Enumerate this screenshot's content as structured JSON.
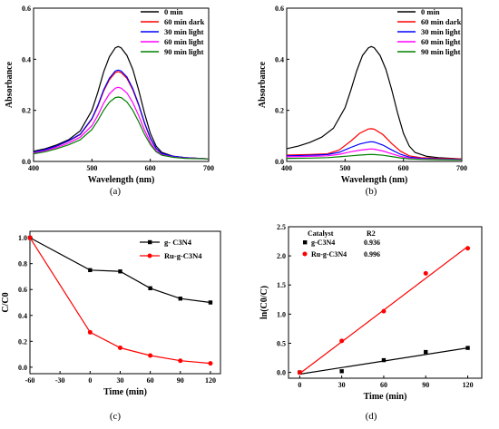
{
  "chart_data": [
    {
      "id": "a",
      "type": "line",
      "caption": "(a)",
      "xlabel": "Wavelength (nm)",
      "ylabel": "Absorbance",
      "xlim": [
        400,
        700
      ],
      "ylim": [
        0,
        0.6
      ],
      "xticks": [
        "400",
        "500",
        "600",
        "700"
      ],
      "yticks": [
        "0.0",
        "0.2",
        "0.4",
        "0.6"
      ],
      "legend_position": "top-right",
      "series": [
        {
          "name": "0 min",
          "color": "#000000",
          "points": [
            [
              400,
              0.04
            ],
            [
              420,
              0.05
            ],
            [
              440,
              0.065
            ],
            [
              460,
              0.085
            ],
            [
              480,
              0.12
            ],
            [
              500,
              0.2
            ],
            [
              510,
              0.27
            ],
            [
              520,
              0.35
            ],
            [
              530,
              0.41
            ],
            [
              540,
              0.445
            ],
            [
              545,
              0.45
            ],
            [
              550,
              0.445
            ],
            [
              560,
              0.415
            ],
            [
              570,
              0.36
            ],
            [
              580,
              0.28
            ],
            [
              590,
              0.19
            ],
            [
              600,
              0.11
            ],
            [
              610,
              0.06
            ],
            [
              620,
              0.035
            ],
            [
              640,
              0.02
            ],
            [
              660,
              0.015
            ],
            [
              700,
              0.01
            ]
          ]
        },
        {
          "name": "60 min dark",
          "color": "#ff0000",
          "points": [
            [
              400,
              0.035
            ],
            [
              420,
              0.045
            ],
            [
              440,
              0.06
            ],
            [
              460,
              0.08
            ],
            [
              480,
              0.105
            ],
            [
              500,
              0.165
            ],
            [
              510,
              0.215
            ],
            [
              520,
              0.275
            ],
            [
              530,
              0.32
            ],
            [
              540,
              0.348
            ],
            [
              545,
              0.352
            ],
            [
              550,
              0.348
            ],
            [
              560,
              0.325
            ],
            [
              570,
              0.28
            ],
            [
              580,
              0.22
            ],
            [
              590,
              0.15
            ],
            [
              600,
              0.09
            ],
            [
              610,
              0.05
            ],
            [
              620,
              0.03
            ],
            [
              640,
              0.02
            ],
            [
              660,
              0.015
            ],
            [
              700,
              0.01
            ]
          ]
        },
        {
          "name": "30 min light",
          "color": "#0000ff",
          "points": [
            [
              400,
              0.036
            ],
            [
              420,
              0.046
            ],
            [
              440,
              0.061
            ],
            [
              460,
              0.081
            ],
            [
              480,
              0.107
            ],
            [
              500,
              0.168
            ],
            [
              510,
              0.219
            ],
            [
              520,
              0.28
            ],
            [
              530,
              0.326
            ],
            [
              540,
              0.354
            ],
            [
              545,
              0.358
            ],
            [
              550,
              0.354
            ],
            [
              560,
              0.331
            ],
            [
              570,
              0.285
            ],
            [
              580,
              0.224
            ],
            [
              590,
              0.153
            ],
            [
              600,
              0.092
            ],
            [
              610,
              0.051
            ],
            [
              620,
              0.031
            ],
            [
              640,
              0.02
            ],
            [
              660,
              0.015
            ],
            [
              700,
              0.01
            ]
          ]
        },
        {
          "name": "60 min light",
          "color": "#ff00ff",
          "points": [
            [
              400,
              0.033
            ],
            [
              420,
              0.042
            ],
            [
              440,
              0.055
            ],
            [
              460,
              0.072
            ],
            [
              480,
              0.095
            ],
            [
              500,
              0.14
            ],
            [
              510,
              0.18
            ],
            [
              520,
              0.228
            ],
            [
              530,
              0.265
            ],
            [
              540,
              0.287
            ],
            [
              545,
              0.29
            ],
            [
              550,
              0.287
            ],
            [
              560,
              0.268
            ],
            [
              570,
              0.23
            ],
            [
              580,
              0.18
            ],
            [
              590,
              0.123
            ],
            [
              600,
              0.075
            ],
            [
              610,
              0.042
            ],
            [
              620,
              0.026
            ],
            [
              640,
              0.017
            ],
            [
              660,
              0.013
            ],
            [
              700,
              0.01
            ]
          ]
        },
        {
          "name": "90 min light",
          "color": "#008000",
          "points": [
            [
              400,
              0.03
            ],
            [
              420,
              0.038
            ],
            [
              440,
              0.05
            ],
            [
              460,
              0.065
            ],
            [
              480,
              0.085
            ],
            [
              500,
              0.125
            ],
            [
              510,
              0.16
            ],
            [
              520,
              0.2
            ],
            [
              530,
              0.232
            ],
            [
              540,
              0.25
            ],
            [
              545,
              0.252
            ],
            [
              550,
              0.25
            ],
            [
              560,
              0.233
            ],
            [
              570,
              0.2
            ],
            [
              580,
              0.156
            ],
            [
              590,
              0.107
            ],
            [
              600,
              0.066
            ],
            [
              610,
              0.038
            ],
            [
              620,
              0.024
            ],
            [
              640,
              0.016
            ],
            [
              660,
              0.012
            ],
            [
              700,
              0.01
            ]
          ]
        }
      ]
    },
    {
      "id": "b",
      "type": "line",
      "caption": "(b)",
      "xlabel": "Wavelength (nm)",
      "ylabel": "Absorbance",
      "xlim": [
        400,
        700
      ],
      "ylim": [
        0,
        0.6
      ],
      "xticks": [
        "400",
        "500",
        "600",
        "700"
      ],
      "yticks": [
        "0.0",
        "0.2",
        "0.4",
        "0.6"
      ],
      "legend_position": "top-right",
      "series": [
        {
          "name": "0 min",
          "color": "#000000",
          "points": [
            [
              400,
              0.05
            ],
            [
              420,
              0.06
            ],
            [
              440,
              0.075
            ],
            [
              460,
              0.095
            ],
            [
              480,
              0.13
            ],
            [
              500,
              0.21
            ],
            [
              510,
              0.28
            ],
            [
              520,
              0.355
            ],
            [
              530,
              0.415
            ],
            [
              540,
              0.445
            ],
            [
              545,
              0.45
            ],
            [
              550,
              0.445
            ],
            [
              560,
              0.415
            ],
            [
              570,
              0.36
            ],
            [
              580,
              0.28
            ],
            [
              590,
              0.19
            ],
            [
              600,
              0.11
            ],
            [
              610,
              0.06
            ],
            [
              620,
              0.035
            ],
            [
              640,
              0.02
            ],
            [
              660,
              0.015
            ],
            [
              700,
              0.01
            ]
          ]
        },
        {
          "name": "60 min dark",
          "color": "#ff0000",
          "points": [
            [
              400,
              0.025
            ],
            [
              440,
              0.027
            ],
            [
              470,
              0.03
            ],
            [
              490,
              0.045
            ],
            [
              510,
              0.08
            ],
            [
              525,
              0.11
            ],
            [
              540,
              0.127
            ],
            [
              545,
              0.128
            ],
            [
              550,
              0.126
            ],
            [
              565,
              0.105
            ],
            [
              580,
              0.07
            ],
            [
              595,
              0.04
            ],
            [
              610,
              0.022
            ],
            [
              630,
              0.015
            ],
            [
              660,
              0.012
            ],
            [
              700,
              0.01
            ]
          ]
        },
        {
          "name": "30 min light",
          "color": "#0000ff",
          "points": [
            [
              400,
              0.022
            ],
            [
              440,
              0.024
            ],
            [
              470,
              0.027
            ],
            [
              490,
              0.036
            ],
            [
              510,
              0.055
            ],
            [
              525,
              0.068
            ],
            [
              540,
              0.076
            ],
            [
              545,
              0.077
            ],
            [
              550,
              0.076
            ],
            [
              565,
              0.064
            ],
            [
              580,
              0.045
            ],
            [
              595,
              0.028
            ],
            [
              610,
              0.017
            ],
            [
              630,
              0.012
            ],
            [
              660,
              0.01
            ],
            [
              700,
              0.008
            ]
          ]
        },
        {
          "name": "60 min light",
          "color": "#ff00ff",
          "points": [
            [
              400,
              0.018
            ],
            [
              440,
              0.02
            ],
            [
              470,
              0.022
            ],
            [
              490,
              0.028
            ],
            [
              510,
              0.038
            ],
            [
              525,
              0.044
            ],
            [
              540,
              0.048
            ],
            [
              545,
              0.049
            ],
            [
              550,
              0.048
            ],
            [
              565,
              0.041
            ],
            [
              580,
              0.03
            ],
            [
              595,
              0.02
            ],
            [
              610,
              0.013
            ],
            [
              630,
              0.01
            ],
            [
              660,
              0.008
            ],
            [
              700,
              0.007
            ]
          ]
        },
        {
          "name": "90 min light",
          "color": "#008000",
          "points": [
            [
              400,
              0.012
            ],
            [
              440,
              0.013
            ],
            [
              470,
              0.015
            ],
            [
              490,
              0.018
            ],
            [
              510,
              0.022
            ],
            [
              525,
              0.025
            ],
            [
              540,
              0.027
            ],
            [
              545,
              0.027
            ],
            [
              550,
              0.027
            ],
            [
              565,
              0.024
            ],
            [
              580,
              0.019
            ],
            [
              595,
              0.014
            ],
            [
              610,
              0.01
            ],
            [
              630,
              0.008
            ],
            [
              660,
              0.007
            ],
            [
              700,
              0.006
            ]
          ]
        }
      ]
    },
    {
      "id": "c",
      "type": "line",
      "caption": "(c)",
      "xlabel": "Time (min)",
      "ylabel": "C/C0",
      "xlim": [
        -60,
        130
      ],
      "ylim": [
        -0.05,
        1.05
      ],
      "xticks": [
        "-60",
        "-30",
        "0",
        "30",
        "60",
        "90",
        "120"
      ],
      "yticks": [
        "0.0",
        "0.2",
        "0.4",
        "0.6",
        "0.8",
        "1.0"
      ],
      "legend_position": "top-right",
      "series": [
        {
          "name": "g- C3N4",
          "color": "#000000",
          "marker": "square",
          "x": [
            -60,
            0,
            30,
            60,
            90,
            120
          ],
          "y": [
            1.0,
            0.75,
            0.74,
            0.61,
            0.53,
            0.5
          ]
        },
        {
          "name": "Ru-g-C3N4",
          "color": "#ff0000",
          "marker": "circle",
          "x": [
            -60,
            0,
            30,
            60,
            90,
            120
          ],
          "y": [
            1.0,
            0.27,
            0.15,
            0.09,
            0.05,
            0.03
          ]
        }
      ]
    },
    {
      "id": "d",
      "type": "scatter",
      "caption": "(d)",
      "xlabel": "Time (min)",
      "ylabel": "ln(C0/C)",
      "xlim": [
        -8,
        130
      ],
      "ylim": [
        -0.1,
        2.5
      ],
      "xticks": [
        "0",
        "30",
        "60",
        "90",
        "120"
      ],
      "yticks": [
        "0.0",
        "0.5",
        "1.0",
        "1.5",
        "2.0",
        "2.5"
      ],
      "legend_position": "top-left",
      "legend_header": {
        "catalyst": "Catalyst",
        "r2": "R2"
      },
      "series": [
        {
          "name": "g-C3N4",
          "r2": "0.936",
          "color": "#000000",
          "marker": "square",
          "x": [
            0,
            30,
            60,
            90,
            120
          ],
          "y": [
            0.0,
            0.02,
            0.21,
            0.35,
            0.42
          ],
          "fit": [
            [
              0,
              -0.03
            ],
            [
              120,
              0.42
            ]
          ]
        },
        {
          "name": "Ru-g-C3N4",
          "r2": "0.996",
          "color": "#ff0000",
          "marker": "circle",
          "x": [
            0,
            30,
            60,
            90,
            120
          ],
          "y": [
            0.0,
            0.54,
            1.05,
            1.7,
            2.13
          ],
          "fit": [
            [
              0,
              -0.02
            ],
            [
              120,
              2.16
            ]
          ]
        }
      ]
    }
  ]
}
